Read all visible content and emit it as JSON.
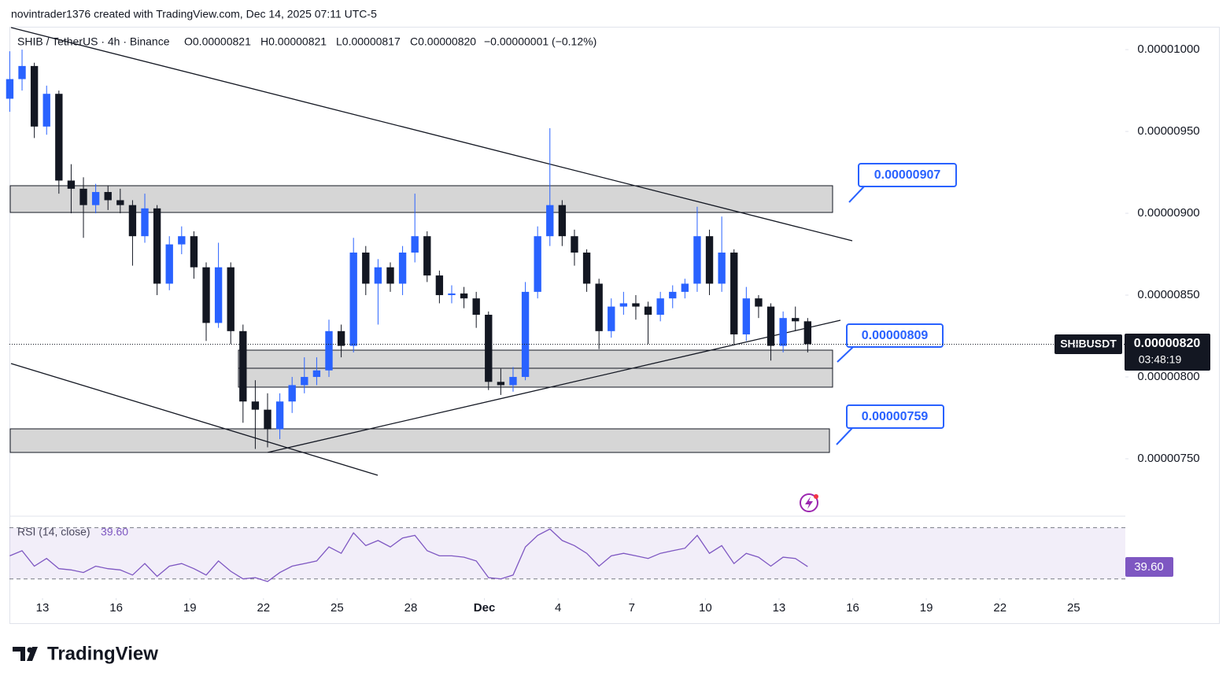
{
  "header": {
    "author_line": "novintrader1376 created with TradingView.com, Dec 14, 2025 07:11 UTC-5"
  },
  "footer": {
    "brand": "TradingView"
  },
  "chart_data": {
    "type": "candlestick",
    "symbol": "SHIB / TetherUS · 4h · Binance",
    "ohlc_labels": {
      "open": "O0.00000821",
      "high": "H0.00000821",
      "low": "L0.00000817",
      "close": "C0.00000820",
      "change": "−0.00000001 (−0.12%)"
    },
    "up_color": "#2962ff",
    "down_color": "#131722",
    "xlim": [
      "2025-11-11T15:40",
      "2025-12-27T01:00"
    ],
    "xticks": [
      {
        "value": "2025-11-13",
        "label": "13"
      },
      {
        "value": "2025-11-16",
        "label": "16"
      },
      {
        "value": "2025-11-19",
        "label": "19"
      },
      {
        "value": "2025-11-22",
        "label": "22"
      },
      {
        "value": "2025-11-25",
        "label": "25"
      },
      {
        "value": "2025-11-28",
        "label": "28"
      },
      {
        "value": "2025-12-01",
        "label": "Dec"
      },
      {
        "value": "2025-12-04",
        "label": "4"
      },
      {
        "value": "2025-12-07",
        "label": "7"
      },
      {
        "value": "2025-12-10",
        "label": "10"
      },
      {
        "value": "2025-12-13",
        "label": "13"
      },
      {
        "value": "2025-12-16",
        "label": "16"
      },
      {
        "value": "2025-12-19",
        "label": "19"
      },
      {
        "value": "2025-12-22",
        "label": "22"
      },
      {
        "value": "2025-12-25",
        "label": "25"
      }
    ],
    "ylim": [
      7.154e-06,
      1.0135e-05
    ],
    "yticks": [
      {
        "value": 1e-05,
        "label": "0.00001000"
      },
      {
        "value": 9.5e-06,
        "label": "0.00000950"
      },
      {
        "value": 9e-06,
        "label": "0.00000900"
      },
      {
        "value": 8.5e-06,
        "label": "0.00000850"
      },
      {
        "value": 8e-06,
        "label": "0.00000800"
      },
      {
        "value": 7.5e-06,
        "label": "0.00000750"
      }
    ],
    "last_price": {
      "symbol": "SHIBUSDT",
      "value": 8.2e-06,
      "label": "0.00000820",
      "countdown": "03:48:19"
    },
    "levels": [
      {
        "value": 9.07e-06,
        "label": "0.00000907"
      },
      {
        "value": 8.09e-06,
        "label": "0.00000809"
      },
      {
        "value": 7.59e-06,
        "label": "0.00000759"
      }
    ],
    "candles": [
      {
        "x": "2025-11-11T16:00",
        "open": 9.7e-06,
        "high": 9.99e-06,
        "low": 9.62e-06,
        "close": 9.82e-06
      },
      {
        "x": "2025-11-12T04:00",
        "open": 9.82e-06,
        "high": 1e-05,
        "low": 9.75e-06,
        "close": 9.9e-06
      },
      {
        "x": "2025-11-12T16:00",
        "open": 9.9e-06,
        "high": 9.92e-06,
        "low": 9.46e-06,
        "close": 9.53e-06
      },
      {
        "x": "2025-11-13T04:00",
        "open": 9.53e-06,
        "high": 9.78e-06,
        "low": 9.48e-06,
        "close": 9.73e-06
      },
      {
        "x": "2025-11-13T16:00",
        "open": 9.73e-06,
        "high": 9.75e-06,
        "low": 9.12e-06,
        "close": 9.2e-06
      },
      {
        "x": "2025-11-14T04:00",
        "open": 9.2e-06,
        "high": 9.3e-06,
        "low": 9e-06,
        "close": 9.15e-06
      },
      {
        "x": "2025-11-14T16:00",
        "open": 9.15e-06,
        "high": 9.22e-06,
        "low": 8.85e-06,
        "close": 9.05e-06
      },
      {
        "x": "2025-11-15T04:00",
        "open": 9.05e-06,
        "high": 9.18e-06,
        "low": 9e-06,
        "close": 9.13e-06
      },
      {
        "x": "2025-11-15T16:00",
        "open": 9.13e-06,
        "high": 9.17e-06,
        "low": 9.02e-06,
        "close": 9.08e-06
      },
      {
        "x": "2025-11-16T04:00",
        "open": 9.08e-06,
        "high": 9.15e-06,
        "low": 9e-06,
        "close": 9.05e-06
      },
      {
        "x": "2025-11-16T16:00",
        "open": 9.05e-06,
        "high": 9.08e-06,
        "low": 8.68e-06,
        "close": 8.86e-06
      },
      {
        "x": "2025-11-17T04:00",
        "open": 8.86e-06,
        "high": 9.12e-06,
        "low": 8.82e-06,
        "close": 9.03e-06
      },
      {
        "x": "2025-11-17T16:00",
        "open": 9.03e-06,
        "high": 9.05e-06,
        "low": 8.5e-06,
        "close": 8.57e-06
      },
      {
        "x": "2025-11-18T04:00",
        "open": 8.57e-06,
        "high": 8.86e-06,
        "low": 8.53e-06,
        "close": 8.81e-06
      },
      {
        "x": "2025-11-18T16:00",
        "open": 8.81e-06,
        "high": 8.92e-06,
        "low": 8.75e-06,
        "close": 8.86e-06
      },
      {
        "x": "2025-11-19T04:00",
        "open": 8.86e-06,
        "high": 8.89e-06,
        "low": 8.6e-06,
        "close": 8.67e-06
      },
      {
        "x": "2025-11-19T16:00",
        "open": 8.67e-06,
        "high": 8.7e-06,
        "low": 8.22e-06,
        "close": 8.33e-06
      },
      {
        "x": "2025-11-20T04:00",
        "open": 8.33e-06,
        "high": 8.82e-06,
        "low": 8.3e-06,
        "close": 8.67e-06
      },
      {
        "x": "2025-11-20T16:00",
        "open": 8.67e-06,
        "high": 8.7e-06,
        "low": 8.2e-06,
        "close": 8.28e-06
      },
      {
        "x": "2025-11-21T04:00",
        "open": 8.28e-06,
        "high": 8.32e-06,
        "low": 7.72e-06,
        "close": 7.85e-06
      },
      {
        "x": "2025-11-21T16:00",
        "open": 7.85e-06,
        "high": 7.98e-06,
        "low": 7.56e-06,
        "close": 7.8e-06
      },
      {
        "x": "2025-11-22T04:00",
        "open": 7.8e-06,
        "high": 7.9e-06,
        "low": 7.57e-06,
        "close": 7.68e-06
      },
      {
        "x": "2025-11-22T16:00",
        "open": 7.68e-06,
        "high": 7.9e-06,
        "low": 7.62e-06,
        "close": 7.85e-06
      },
      {
        "x": "2025-11-23T04:00",
        "open": 7.85e-06,
        "high": 8e-06,
        "low": 7.78e-06,
        "close": 7.95e-06
      },
      {
        "x": "2025-11-23T16:00",
        "open": 7.95e-06,
        "high": 8.12e-06,
        "low": 7.9e-06,
        "close": 8e-06
      },
      {
        "x": "2025-11-24T04:00",
        "open": 8e-06,
        "high": 8.12e-06,
        "low": 7.95e-06,
        "close": 8.04e-06
      },
      {
        "x": "2025-11-24T16:00",
        "open": 8.04e-06,
        "high": 8.35e-06,
        "low": 8e-06,
        "close": 8.28e-06
      },
      {
        "x": "2025-11-25T04:00",
        "open": 8.28e-06,
        "high": 8.32e-06,
        "low": 8.12e-06,
        "close": 8.19e-06
      },
      {
        "x": "2025-11-25T16:00",
        "open": 8.19e-06,
        "high": 8.85e-06,
        "low": 8.15e-06,
        "close": 8.76e-06
      },
      {
        "x": "2025-11-26T04:00",
        "open": 8.76e-06,
        "high": 8.8e-06,
        "low": 8.5e-06,
        "close": 8.57e-06
      },
      {
        "x": "2025-11-26T16:00",
        "open": 8.57e-06,
        "high": 8.72e-06,
        "low": 8.32e-06,
        "close": 8.67e-06
      },
      {
        "x": "2025-11-27T04:00",
        "open": 8.67e-06,
        "high": 8.7e-06,
        "low": 8.52e-06,
        "close": 8.57e-06
      },
      {
        "x": "2025-11-27T16:00",
        "open": 8.57e-06,
        "high": 8.8e-06,
        "low": 8.5e-06,
        "close": 8.76e-06
      },
      {
        "x": "2025-11-28T04:00",
        "open": 8.76e-06,
        "high": 9.12e-06,
        "low": 8.7e-06,
        "close": 8.86e-06
      },
      {
        "x": "2025-11-28T16:00",
        "open": 8.86e-06,
        "high": 8.89e-06,
        "low": 8.58e-06,
        "close": 8.62e-06
      },
      {
        "x": "2025-11-29T04:00",
        "open": 8.62e-06,
        "high": 8.65e-06,
        "low": 8.45e-06,
        "close": 8.5e-06
      },
      {
        "x": "2025-11-29T16:00",
        "open": 8.5e-06,
        "high": 8.56e-06,
        "low": 8.45e-06,
        "close": 8.51e-06
      },
      {
        "x": "2025-11-30T04:00",
        "open": 8.51e-06,
        "high": 8.55e-06,
        "low": 8.42e-06,
        "close": 8.48e-06
      },
      {
        "x": "2025-11-30T16:00",
        "open": 8.48e-06,
        "high": 8.52e-06,
        "low": 8.3e-06,
        "close": 8.38e-06
      },
      {
        "x": "2025-12-01T04:00",
        "open": 8.38e-06,
        "high": 8.4e-06,
        "low": 7.92e-06,
        "close": 7.97e-06
      },
      {
        "x": "2025-12-01T16:00",
        "open": 7.97e-06,
        "high": 8.05e-06,
        "low": 7.89e-06,
        "close": 7.95e-06
      },
      {
        "x": "2025-12-02T04:00",
        "open": 7.95e-06,
        "high": 8.06e-06,
        "low": 7.91e-06,
        "close": 8e-06
      },
      {
        "x": "2025-12-02T16:00",
        "open": 8e-06,
        "high": 8.58e-06,
        "low": 7.98e-06,
        "close": 8.52e-06
      },
      {
        "x": "2025-12-03T04:00",
        "open": 8.52e-06,
        "high": 8.92e-06,
        "low": 8.48e-06,
        "close": 8.86e-06
      },
      {
        "x": "2025-12-03T16:00",
        "open": 8.86e-06,
        "high": 9.52e-06,
        "low": 8.8e-06,
        "close": 9.05e-06
      },
      {
        "x": "2025-12-04T04:00",
        "open": 9.05e-06,
        "high": 9.08e-06,
        "low": 8.8e-06,
        "close": 8.86e-06
      },
      {
        "x": "2025-12-04T16:00",
        "open": 8.86e-06,
        "high": 8.9e-06,
        "low": 8.68e-06,
        "close": 8.76e-06
      },
      {
        "x": "2025-12-05T04:00",
        "open": 8.76e-06,
        "high": 8.78e-06,
        "low": 8.52e-06,
        "close": 8.57e-06
      },
      {
        "x": "2025-12-05T16:00",
        "open": 8.57e-06,
        "high": 8.6e-06,
        "low": 8.17e-06,
        "close": 8.28e-06
      },
      {
        "x": "2025-12-06T04:00",
        "open": 8.28e-06,
        "high": 8.48e-06,
        "low": 8.24e-06,
        "close": 8.43e-06
      },
      {
        "x": "2025-12-06T16:00",
        "open": 8.43e-06,
        "high": 8.52e-06,
        "low": 8.38e-06,
        "close": 8.45e-06
      },
      {
        "x": "2025-12-07T04:00",
        "open": 8.45e-06,
        "high": 8.5e-06,
        "low": 8.35e-06,
        "close": 8.43e-06
      },
      {
        "x": "2025-12-07T16:00",
        "open": 8.43e-06,
        "high": 8.46e-06,
        "low": 8.2e-06,
        "close": 8.38e-06
      },
      {
        "x": "2025-12-08T04:00",
        "open": 8.38e-06,
        "high": 8.52e-06,
        "low": 8.34e-06,
        "close": 8.48e-06
      },
      {
        "x": "2025-12-08T16:00",
        "open": 8.48e-06,
        "high": 8.56e-06,
        "low": 8.42e-06,
        "close": 8.52e-06
      },
      {
        "x": "2025-12-09T04:00",
        "open": 8.52e-06,
        "high": 8.6e-06,
        "low": 8.48e-06,
        "close": 8.57e-06
      },
      {
        "x": "2025-12-09T16:00",
        "open": 8.57e-06,
        "high": 9.04e-06,
        "low": 8.52e-06,
        "close": 8.86e-06
      },
      {
        "x": "2025-12-10T04:00",
        "open": 8.86e-06,
        "high": 8.9e-06,
        "low": 8.5e-06,
        "close": 8.57e-06
      },
      {
        "x": "2025-12-10T16:00",
        "open": 8.57e-06,
        "high": 8.98e-06,
        "low": 8.52e-06,
        "close": 8.76e-06
      },
      {
        "x": "2025-12-11T04:00",
        "open": 8.76e-06,
        "high": 8.78e-06,
        "low": 8.2e-06,
        "close": 8.26e-06
      },
      {
        "x": "2025-12-11T16:00",
        "open": 8.26e-06,
        "high": 8.55e-06,
        "low": 8.22e-06,
        "close": 8.48e-06
      },
      {
        "x": "2025-12-12T04:00",
        "open": 8.48e-06,
        "high": 8.5e-06,
        "low": 8.36e-06,
        "close": 8.43e-06
      },
      {
        "x": "2025-12-12T16:00",
        "open": 8.43e-06,
        "high": 8.45e-06,
        "low": 8.1e-06,
        "close": 8.19e-06
      },
      {
        "x": "2025-12-13T04:00",
        "open": 8.19e-06,
        "high": 8.4e-06,
        "low": 8.15e-06,
        "close": 8.36e-06
      },
      {
        "x": "2025-12-13T16:00",
        "open": 8.36e-06,
        "high": 8.43e-06,
        "low": 8.28e-06,
        "close": 8.34e-06
      },
      {
        "x": "2025-12-14T04:00",
        "open": 8.34e-06,
        "high": 8.36e-06,
        "low": 8.15e-06,
        "close": 8.2e-06
      }
    ],
    "rsi": {
      "title": "RSI (14, close)",
      "color": "#7e57c2",
      "ylim": [
        20,
        79
      ],
      "bands": [
        30,
        70
      ],
      "last": {
        "value": 39.6,
        "label": "39.60"
      },
      "values": [
        48,
        52,
        40,
        46,
        38,
        37,
        35,
        40,
        38,
        37,
        33,
        42,
        32,
        40,
        42,
        38,
        33,
        44,
        36,
        30,
        31,
        28,
        35,
        40,
        42,
        44,
        55,
        50,
        66,
        56,
        60,
        55,
        62,
        64,
        52,
        48,
        48,
        47,
        44,
        31,
        30,
        33,
        55,
        64,
        69,
        60,
        56,
        50,
        40,
        48,
        50,
        48,
        46,
        50,
        52,
        54,
        64,
        50,
        56,
        42,
        50,
        47,
        40,
        47,
        46,
        39.6
      ]
    }
  }
}
